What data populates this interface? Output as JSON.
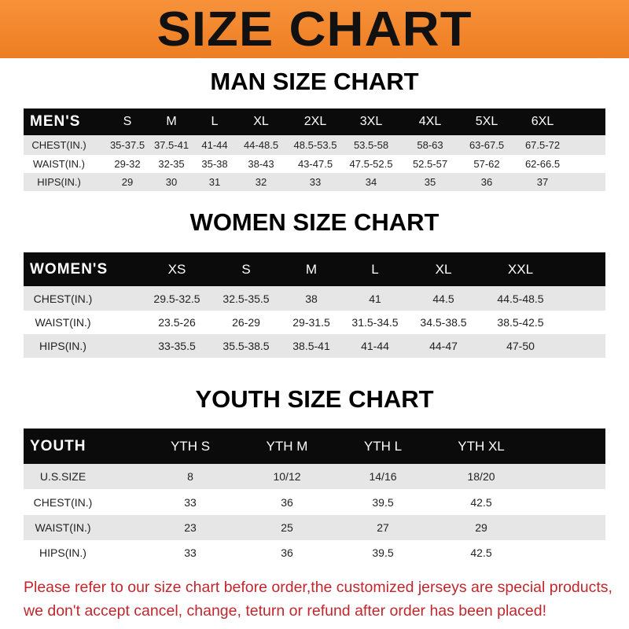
{
  "banner": {
    "title": "SIZE CHART",
    "color": "#f08a2c"
  },
  "men": {
    "title": "MAN SIZE CHART",
    "header": [
      "MEN'S",
      "S",
      "M",
      "L",
      "XL",
      "2XL",
      "3XL",
      "4XL",
      "5XL",
      "6XL"
    ],
    "rows": [
      [
        "CHEST(IN.)",
        "35-37.5",
        "37.5-41",
        "41-44",
        "44-48.5",
        "48.5-53.5",
        "53.5-58",
        "58-63",
        "63-67.5",
        "67.5-72"
      ],
      [
        "WAIST(IN.)",
        "29-32",
        "32-35",
        "35-38",
        "38-43",
        "43-47.5",
        "47.5-52.5",
        "52.5-57",
        "57-62",
        "62-66.5"
      ],
      [
        "HIPS(IN.)",
        "29",
        "30",
        "31",
        "32",
        "33",
        "34",
        "35",
        "36",
        "37"
      ]
    ]
  },
  "women": {
    "title": "WOMEN SIZE CHART",
    "header": [
      "WOMEN'S",
      "XS",
      "S",
      "M",
      "L",
      "XL",
      "XXL"
    ],
    "rows": [
      [
        "CHEST(IN.)",
        "29.5-32.5",
        "32.5-35.5",
        "38",
        "41",
        "44.5",
        "44.5-48.5"
      ],
      [
        "WAIST(IN.)",
        "23.5-26",
        "26-29",
        "29-31.5",
        "31.5-34.5",
        "34.5-38.5",
        "38.5-42.5"
      ],
      [
        "HIPS(IN.)",
        "33-35.5",
        "35.5-38.5",
        "38.5-41",
        "41-44",
        "44-47",
        "47-50"
      ]
    ]
  },
  "youth": {
    "title": "YOUTH SIZE CHART",
    "header": [
      "YOUTH",
      "YTH S",
      "YTH M",
      "YTH L",
      "YTH XL"
    ],
    "rows": [
      [
        "U.S.SIZE",
        "8",
        "10/12",
        "14/16",
        "18/20"
      ],
      [
        "CHEST(IN.)",
        "33",
        "36",
        "39.5",
        "42.5"
      ],
      [
        "WAIST(IN.)",
        "23",
        "25",
        "27",
        "29"
      ],
      [
        "HIPS(IN.)",
        "33",
        "36",
        "39.5",
        "42.5"
      ]
    ]
  },
  "footer": {
    "line1": "Please refer to our size chart before order,the customized jerseys are special products,",
    "line2": "we don't accept cancel, change, teturn or refund after order has been placed!",
    "color": "#c0272d"
  }
}
